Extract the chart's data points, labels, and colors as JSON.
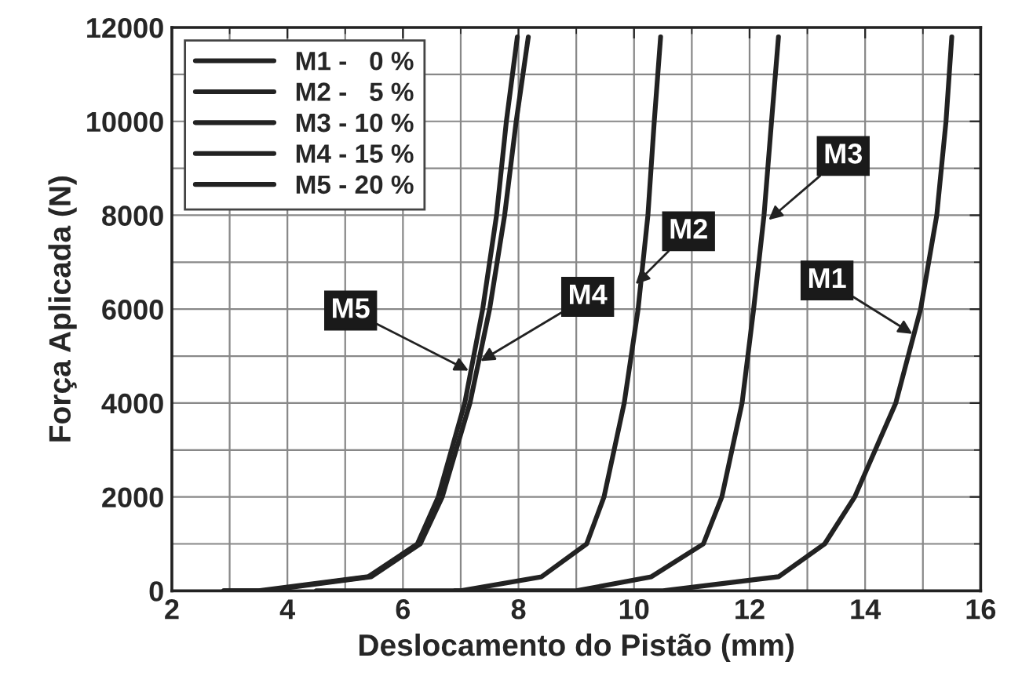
{
  "chart_data": {
    "type": "line",
    "xlabel": "Deslocamento do Pistão (mm)",
    "ylabel": "Força Aplicada (N)",
    "xlim": [
      2,
      16
    ],
    "xticks": [
      2,
      4,
      6,
      8,
      10,
      12,
      14,
      16
    ],
    "ylim": [
      0,
      12000
    ],
    "yticks": [
      0,
      2000,
      4000,
      6000,
      8000,
      10000,
      12000
    ],
    "grid": true,
    "legend": "top left",
    "marker": "none",
    "line_style": "solid",
    "series": [
      {
        "name": "M1 -   0 %",
        "color": "#222222",
        "x": [
          9.3,
          10.5,
          12.5,
          13.3,
          13.82,
          14.53,
          14.96,
          15.24,
          15.4,
          15.5
        ],
        "values": [
          0,
          0,
          300,
          1000,
          2000,
          4000,
          6000,
          8000,
          10000,
          11800
        ]
      },
      {
        "name": "M2 -   5 %",
        "color": "#222222",
        "x": [
          4.5,
          7.0,
          8.4,
          9.18,
          9.48,
          9.83,
          10.07,
          10.24,
          10.35,
          10.46
        ],
        "values": [
          0,
          0,
          300,
          1000,
          2000,
          4000,
          6000,
          8000,
          10000,
          11800
        ]
      },
      {
        "name": "M3 - 10 %",
        "color": "#222222",
        "x": [
          6.9,
          9.0,
          10.3,
          11.2,
          11.52,
          11.87,
          12.07,
          12.25,
          12.38,
          12.5
        ],
        "values": [
          0,
          0,
          300,
          1000,
          2000,
          4000,
          6000,
          8000,
          10000,
          11800
        ]
      },
      {
        "name": "M4 - 15 %",
        "color": "#222222",
        "x": [
          2.9,
          3.6,
          5.45,
          6.3,
          6.68,
          7.16,
          7.5,
          7.76,
          7.96,
          8.17
        ],
        "values": [
          0,
          0,
          300,
          1000,
          2000,
          4000,
          6000,
          8000,
          10000,
          11800
        ]
      },
      {
        "name": "M5 - 20 %",
        "color": "#222222",
        "x": [
          2.9,
          3.5,
          5.4,
          6.25,
          6.61,
          7.07,
          7.38,
          7.62,
          7.79,
          7.98
        ],
        "values": [
          0,
          0,
          300,
          1000,
          2000,
          4000,
          6000,
          8000,
          10000,
          11800
        ]
      }
    ],
    "annotations": [
      {
        "text": "M5",
        "x": 7.17,
        "y": 4670
      },
      {
        "text": "M4",
        "x": 7.31,
        "y": 4870
      },
      {
        "text": "M2",
        "x": 10.0,
        "y": 6500
      },
      {
        "text": "M3",
        "x": 12.3,
        "y": 7870
      },
      {
        "text": "M1",
        "x": 14.85,
        "y": 5450
      }
    ]
  }
}
